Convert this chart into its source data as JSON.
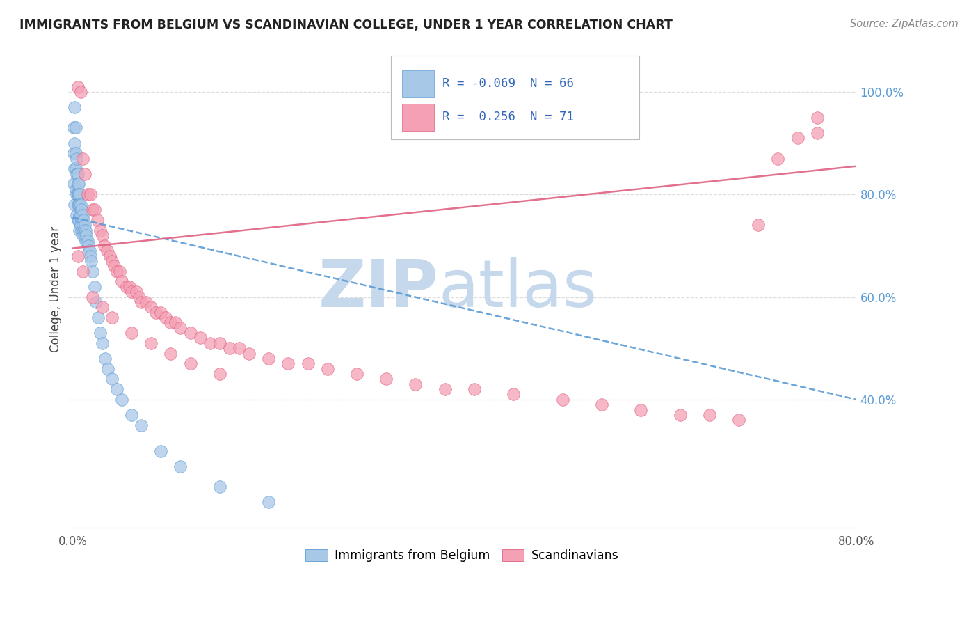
{
  "title": "IMMIGRANTS FROM BELGIUM VS SCANDINAVIAN COLLEGE, UNDER 1 YEAR CORRELATION CHART",
  "source_text": "Source: ZipAtlas.com",
  "ylabel": "College, Under 1 year",
  "legend_label1": "Immigrants from Belgium",
  "legend_label2": "Scandinavians",
  "R1": -0.069,
  "N1": 66,
  "R2": 0.256,
  "N2": 71,
  "color1": "#a8c8e8",
  "color2": "#f4a0b5",
  "edge1": "#5b9bd5",
  "edge2": "#e06080",
  "trend1_color": "#5b9bd5",
  "trend2_color": "#e06080",
  "xlim": [
    -0.005,
    0.8
  ],
  "ylim": [
    0.15,
    1.08
  ],
  "ytick_positions": [
    0.4,
    0.6,
    0.8,
    1.0
  ],
  "ytick_labels": [
    "40.0%",
    "60.0%",
    "80.0%",
    "100.0%"
  ],
  "grid_color": "#dddddd",
  "watermark_ZIP": "ZIP",
  "watermark_atlas": "atlas",
  "watermark_color_ZIP": "#c5d8ec",
  "watermark_color_atlas": "#c5d8ec",
  "blue_trendline_x0": 0.0,
  "blue_trendline_y0": 0.755,
  "blue_trendline_x1": 0.8,
  "blue_trendline_y1": 0.4,
  "pink_trendline_x0": 0.0,
  "pink_trendline_y0": 0.695,
  "pink_trendline_x1": 0.8,
  "pink_trendline_y1": 0.855,
  "blue_x": [
    0.001,
    0.001,
    0.001,
    0.002,
    0.002,
    0.002,
    0.002,
    0.003,
    0.003,
    0.003,
    0.003,
    0.004,
    0.004,
    0.004,
    0.004,
    0.005,
    0.005,
    0.005,
    0.005,
    0.005,
    0.006,
    0.006,
    0.006,
    0.006,
    0.007,
    0.007,
    0.007,
    0.007,
    0.008,
    0.008,
    0.008,
    0.009,
    0.009,
    0.009,
    0.01,
    0.01,
    0.01,
    0.011,
    0.011,
    0.012,
    0.012,
    0.013,
    0.013,
    0.014,
    0.015,
    0.016,
    0.017,
    0.018,
    0.019,
    0.02,
    0.022,
    0.024,
    0.026,
    0.028,
    0.03,
    0.033,
    0.036,
    0.04,
    0.045,
    0.05,
    0.06,
    0.07,
    0.09,
    0.11,
    0.15,
    0.2
  ],
  "blue_y": [
    0.93,
    0.88,
    0.82,
    0.97,
    0.9,
    0.85,
    0.78,
    0.93,
    0.88,
    0.85,
    0.81,
    0.87,
    0.84,
    0.8,
    0.76,
    0.84,
    0.82,
    0.8,
    0.78,
    0.75,
    0.82,
    0.8,
    0.78,
    0.75,
    0.8,
    0.78,
    0.76,
    0.73,
    0.78,
    0.76,
    0.74,
    0.77,
    0.75,
    0.73,
    0.76,
    0.74,
    0.72,
    0.75,
    0.73,
    0.74,
    0.72,
    0.73,
    0.71,
    0.72,
    0.71,
    0.7,
    0.69,
    0.68,
    0.67,
    0.65,
    0.62,
    0.59,
    0.56,
    0.53,
    0.51,
    0.48,
    0.46,
    0.44,
    0.42,
    0.4,
    0.37,
    0.35,
    0.3,
    0.27,
    0.23,
    0.2
  ],
  "pink_x": [
    0.005,
    0.008,
    0.01,
    0.012,
    0.015,
    0.018,
    0.02,
    0.022,
    0.025,
    0.028,
    0.03,
    0.032,
    0.035,
    0.038,
    0.04,
    0.042,
    0.045,
    0.048,
    0.05,
    0.055,
    0.058,
    0.06,
    0.065,
    0.068,
    0.07,
    0.075,
    0.08,
    0.085,
    0.09,
    0.095,
    0.1,
    0.105,
    0.11,
    0.12,
    0.13,
    0.14,
    0.15,
    0.16,
    0.17,
    0.18,
    0.2,
    0.22,
    0.24,
    0.26,
    0.29,
    0.32,
    0.35,
    0.38,
    0.41,
    0.45,
    0.5,
    0.54,
    0.58,
    0.62,
    0.65,
    0.68,
    0.7,
    0.72,
    0.74,
    0.76,
    0.76,
    0.005,
    0.01,
    0.02,
    0.03,
    0.04,
    0.06,
    0.08,
    0.1,
    0.12,
    0.15
  ],
  "pink_y": [
    1.01,
    1.0,
    0.87,
    0.84,
    0.8,
    0.8,
    0.77,
    0.77,
    0.75,
    0.73,
    0.72,
    0.7,
    0.69,
    0.68,
    0.67,
    0.66,
    0.65,
    0.65,
    0.63,
    0.62,
    0.62,
    0.61,
    0.61,
    0.6,
    0.59,
    0.59,
    0.58,
    0.57,
    0.57,
    0.56,
    0.55,
    0.55,
    0.54,
    0.53,
    0.52,
    0.51,
    0.51,
    0.5,
    0.5,
    0.49,
    0.48,
    0.47,
    0.47,
    0.46,
    0.45,
    0.44,
    0.43,
    0.42,
    0.42,
    0.41,
    0.4,
    0.39,
    0.38,
    0.37,
    0.37,
    0.36,
    0.74,
    0.87,
    0.91,
    0.95,
    0.92,
    0.68,
    0.65,
    0.6,
    0.58,
    0.56,
    0.53,
    0.51,
    0.49,
    0.47,
    0.45
  ]
}
